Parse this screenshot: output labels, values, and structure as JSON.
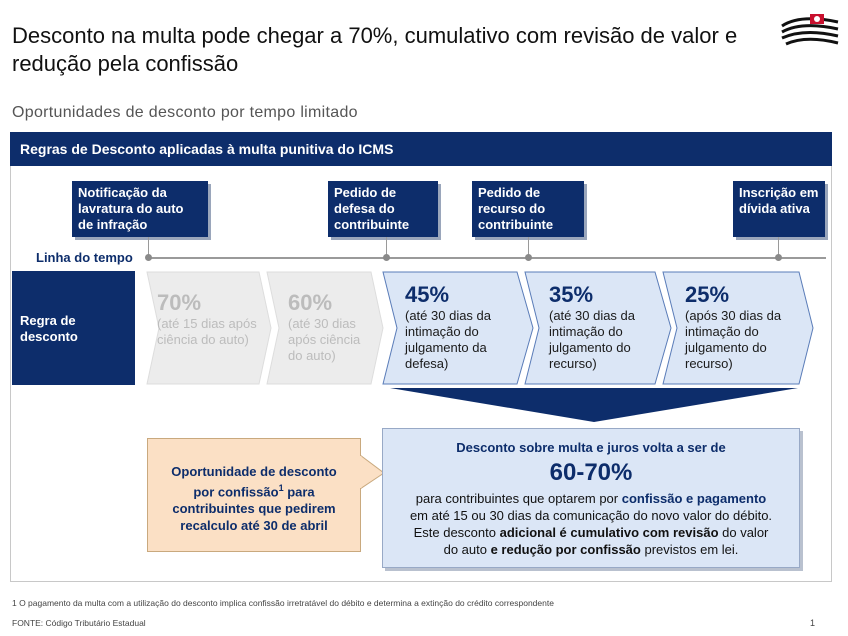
{
  "title": "Desconto na multa pode chegar a 70%, cumulativo com revisão de valor e redução pela confissão",
  "subtitle": "Oportunidades de desconto por tempo limitado",
  "banner": "Regras de Desconto aplicadas à multa punitiva do ICMS",
  "milestones": [
    {
      "label": "Notificação da lavratura do auto de infração"
    },
    {
      "label": "Pedido de defesa do contribuinte"
    },
    {
      "label": "Pedido de recurso do contribuinte"
    },
    {
      "label": "Inscrição em dívida ativa"
    }
  ],
  "timeline_label": "Linha do tempo",
  "rule_label": "Regra de desconto",
  "discounts": [
    {
      "percent": "70%",
      "text": "(até 15 dias após ciência do auto)",
      "style": "grey"
    },
    {
      "percent": "60%",
      "text": "(até 30 dias após ciência do auto)",
      "style": "grey"
    },
    {
      "percent": "45%",
      "text": "(até 30 dias da intimação do julgamento da defesa)",
      "style": "blue"
    },
    {
      "percent": "35%",
      "text": "(até 30 dias da intimação do julgamento do recurso)",
      "style": "blue"
    },
    {
      "percent": "25%",
      "text": "(após 30 dias da intimação do julgamento do recurso)",
      "style": "blue"
    }
  ],
  "opportunity": {
    "line1": "Oportunidade de desconto",
    "line2a": "por confissão",
    "line2sup": "1",
    "line2b": " para",
    "line3": "contribuintes que pedirem",
    "line4": "recalculo até 30 de abril"
  },
  "main_box": {
    "heading": "Desconto sobre multa e juros volta a ser de",
    "big": "60-70%",
    "l1a": "para contribuintes que optarem por ",
    "l1b": "confissão e pagamento",
    "l2": "em até 15 ou 30 dias da comunicação do novo valor do débito.",
    "l3a": "Este desconto ",
    "l3b": "adicional é cumulativo com revisão",
    "l3c": " do valor",
    "l4a": "do auto ",
    "l4b": "e redução por confissão",
    "l4c": " previstos em lei."
  },
  "footnote": "1 O pagamento da multa com a utilização do desconto implica confissão irretratável do débito e determina a extinção do crédito correspondente",
  "source": "FONTE:  Código Tributário Estadual",
  "page_number": "1",
  "colors": {
    "navy": "#0d2d6b",
    "light_blue": "#dbe6f6",
    "grey": "#eeeeee",
    "peach": "#fbe0c5"
  },
  "logo_icon": "sao-paulo-flag-logo-icon"
}
